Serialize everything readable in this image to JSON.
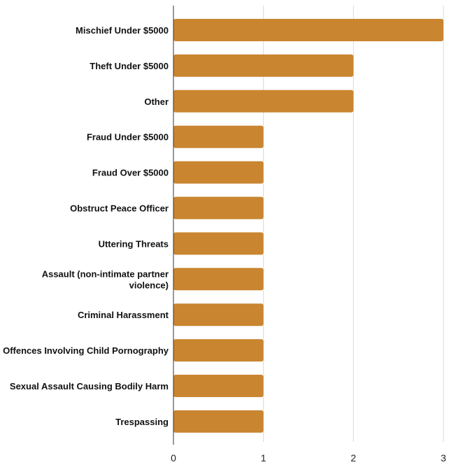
{
  "chart_data": {
    "type": "bar",
    "orientation": "horizontal",
    "title": "",
    "xlabel": "",
    "ylabel": "",
    "categories": [
      [
        "Mischief Under $5000"
      ],
      [
        "Theft Under $5000"
      ],
      [
        "Other"
      ],
      [
        "Fraud Under $5000"
      ],
      [
        "Fraud Over $5000"
      ],
      [
        "Obstruct Peace Officer"
      ],
      [
        "Uttering Threats"
      ],
      [
        "Assault (non-intimate partner",
        "violence)"
      ],
      [
        "Criminal Harassment"
      ],
      [
        "Offences Involving Child Pornography"
      ],
      [
        "Sexual Assault Causing Bodily Harm"
      ],
      [
        "Trespassing"
      ]
    ],
    "values": [
      3,
      2,
      2,
      1,
      1,
      1,
      1,
      1,
      1,
      1,
      1,
      1
    ],
    "xlim": [
      0,
      3
    ],
    "xticks": [
      "0",
      "1",
      "2",
      "3"
    ],
    "grid": true,
    "bar_color": "#c98530",
    "legend": "none"
  }
}
